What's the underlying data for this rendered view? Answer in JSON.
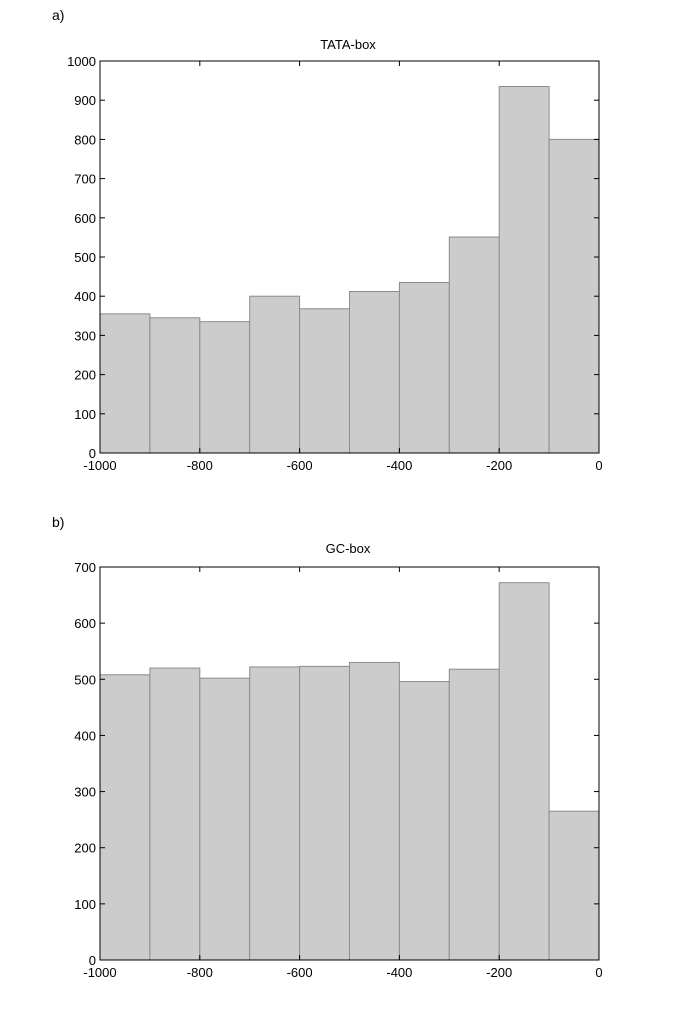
{
  "chart_data": [
    {
      "panel_label": "a)",
      "type": "bar",
      "title": "TATA-box",
      "xlabel": "",
      "ylabel": "",
      "bin_edges": [
        -1000,
        -900,
        -800,
        -700,
        -600,
        -500,
        -400,
        -300,
        -200,
        -100,
        0
      ],
      "values": [
        355,
        345,
        335,
        400,
        368,
        412,
        435,
        551,
        935,
        800
      ],
      "xlim": [
        -1000,
        0
      ],
      "ylim": [
        0,
        1000
      ],
      "xticks": [
        -1000,
        -800,
        -600,
        -400,
        -200,
        0
      ],
      "xtick_labels": [
        "-1000",
        "-800",
        "-600",
        "-400",
        "-200",
        "0"
      ],
      "yticks": [
        0,
        100,
        200,
        300,
        400,
        500,
        600,
        700,
        800,
        900,
        1000
      ],
      "ytick_labels": [
        "0",
        "100",
        "200",
        "300",
        "400",
        "500",
        "600",
        "700",
        "800",
        "900",
        "1000"
      ],
      "grid": false,
      "bar_color": "#cccccc",
      "edge_color": "#8c8c8c"
    },
    {
      "panel_label": "b)",
      "type": "bar",
      "title": "GC-box",
      "xlabel": "",
      "ylabel": "",
      "bin_edges": [
        -1000,
        -900,
        -800,
        -700,
        -600,
        -500,
        -400,
        -300,
        -200,
        -100,
        0
      ],
      "values": [
        508,
        520,
        502,
        522,
        523,
        530,
        496,
        518,
        672,
        265
      ],
      "xlim": [
        -1000,
        0
      ],
      "ylim": [
        0,
        700
      ],
      "xticks": [
        -1000,
        -800,
        -600,
        -400,
        -200,
        0
      ],
      "xtick_labels": [
        "-1000",
        "-800",
        "-600",
        "-400",
        "-200",
        "0"
      ],
      "yticks": [
        0,
        100,
        200,
        300,
        400,
        500,
        600,
        700
      ],
      "ytick_labels": [
        "0",
        "100",
        "200",
        "300",
        "400",
        "500",
        "600",
        "700"
      ],
      "grid": false,
      "bar_color": "#cccccc",
      "edge_color": "#8c8c8c"
    }
  ]
}
